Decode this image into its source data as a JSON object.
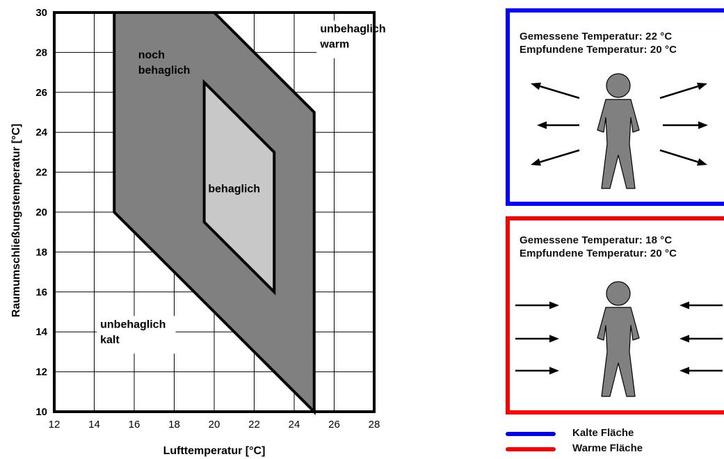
{
  "chart_data": {
    "type": "area",
    "xlabel": "Lufttemperatur [°C]",
    "ylabel": "Raumumschließungstemperatur [°C]",
    "xlim": [
      12,
      28
    ],
    "ylim": [
      10,
      30
    ],
    "xticks": [
      12,
      14,
      16,
      18,
      20,
      22,
      24,
      26,
      28
    ],
    "yticks": [
      10,
      12,
      14,
      16,
      18,
      20,
      22,
      24,
      26,
      28,
      30
    ],
    "grid": true,
    "regions": [
      {
        "name": "noch behaglich",
        "fill": "#808080",
        "points": [
          [
            15,
            30
          ],
          [
            20,
            30
          ],
          [
            25,
            25
          ],
          [
            25,
            10
          ],
          [
            15,
            20
          ]
        ]
      },
      {
        "name": "behaglich",
        "fill": "#c8c8c8",
        "points": [
          [
            19.5,
            26.5
          ],
          [
            23,
            23
          ],
          [
            23,
            16
          ],
          [
            19.5,
            19.5
          ]
        ]
      }
    ],
    "annotations": [
      {
        "lines": [
          "unbehaglich",
          "warm"
        ],
        "x": 25.3,
        "y": 29.0
      },
      {
        "lines": [
          "noch",
          "behaglich"
        ],
        "x": 16.2,
        "y": 27.7
      },
      {
        "lines": [
          "behaglich"
        ],
        "x": 19.7,
        "y": 21.0
      },
      {
        "lines": [
          "unbehaglich",
          "kalt"
        ],
        "x": 14.3,
        "y": 14.2
      }
    ]
  },
  "panels": [
    {
      "measured": "Gemessene Temperatur:  22 °C",
      "perceived": "Empfundene Temperatur: 20 °C",
      "border_color": "#0000ff",
      "arrow_direction": "outward"
    },
    {
      "measured": "Gemessene Temperatur:  18 °C",
      "perceived": "Empfundene Temperatur: 20 °C",
      "border_color": "#ff0000",
      "arrow_direction": "inward"
    }
  ],
  "legend": [
    {
      "label": "Kalte Fläche",
      "color": "#0000ff"
    },
    {
      "label": "Warme Fläche",
      "color": "#ff0000"
    }
  ]
}
